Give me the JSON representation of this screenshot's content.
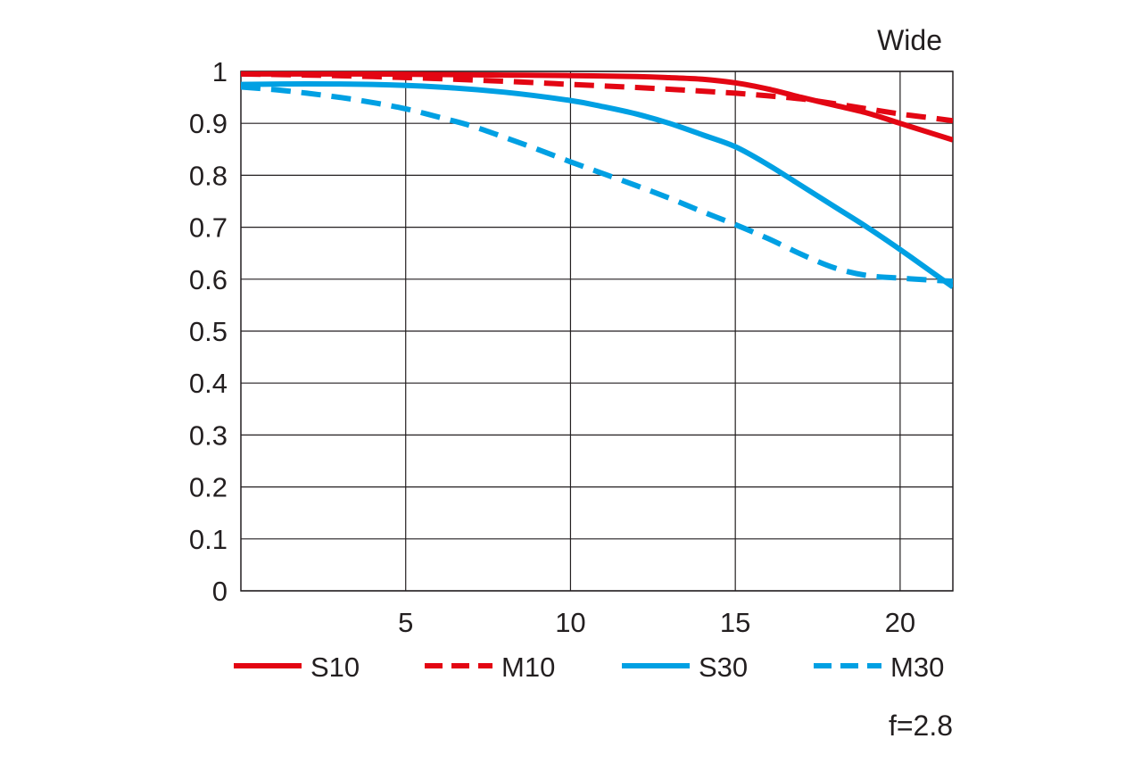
{
  "chart_data": {
    "type": "line",
    "title": "Wide",
    "footnote": "f=2.8",
    "xlabel": "",
    "ylabel": "",
    "xlim": [
      0,
      21.6
    ],
    "ylim": [
      0,
      1
    ],
    "xticks": [
      5,
      10,
      15,
      20
    ],
    "yticks": [
      0,
      0.1,
      0.2,
      0.3,
      0.4,
      0.5,
      0.6,
      0.7,
      0.8,
      0.9,
      1
    ],
    "ytick_labels": [
      "0",
      "0.1",
      "0.2",
      "0.3",
      "0.4",
      "0.5",
      "0.6",
      "0.7",
      "0.8",
      "0.9",
      "1"
    ],
    "grid": true,
    "legend_position": "bottom",
    "series": [
      {
        "name": "S10",
        "color": "#e30613",
        "dash": "solid",
        "x": [
          0,
          2,
          4,
          6,
          8,
          10,
          12,
          13,
          14,
          15,
          16,
          17,
          18,
          19,
          20,
          21,
          21.6
        ],
        "y": [
          0.995,
          0.995,
          0.995,
          0.994,
          0.993,
          0.992,
          0.99,
          0.988,
          0.985,
          0.978,
          0.966,
          0.95,
          0.935,
          0.92,
          0.9,
          0.88,
          0.868
        ]
      },
      {
        "name": "M10",
        "color": "#e30613",
        "dash": "dashed",
        "x": [
          0,
          2,
          4,
          6,
          8,
          10,
          12,
          14,
          15,
          16,
          17,
          18,
          19,
          20,
          21,
          21.6
        ],
        "y": [
          0.995,
          0.993,
          0.99,
          0.986,
          0.981,
          0.975,
          0.969,
          0.962,
          0.958,
          0.953,
          0.947,
          0.938,
          0.928,
          0.918,
          0.91,
          0.905
        ]
      },
      {
        "name": "S30",
        "color": "#00a0e3",
        "dash": "solid",
        "x": [
          0,
          2,
          4,
          6,
          8,
          10,
          11,
          12,
          13,
          14,
          15,
          16,
          17,
          18,
          19,
          20,
          21,
          21.6
        ],
        "y": [
          0.975,
          0.976,
          0.975,
          0.97,
          0.96,
          0.944,
          0.932,
          0.918,
          0.9,
          0.878,
          0.855,
          0.82,
          0.78,
          0.74,
          0.7,
          0.657,
          0.612,
          0.585
        ]
      },
      {
        "name": "M30",
        "color": "#00a0e3",
        "dash": "dashed",
        "x": [
          0,
          1,
          2,
          3,
          4,
          5,
          6,
          7,
          8,
          9,
          10,
          11,
          12,
          13,
          14,
          15,
          16,
          17,
          18,
          19,
          20,
          21,
          21.6
        ],
        "y": [
          0.97,
          0.965,
          0.958,
          0.95,
          0.94,
          0.928,
          0.912,
          0.895,
          0.873,
          0.85,
          0.826,
          0.803,
          0.78,
          0.756,
          0.73,
          0.705,
          0.678,
          0.648,
          0.622,
          0.607,
          0.602,
          0.598,
          0.596
        ]
      }
    ]
  }
}
